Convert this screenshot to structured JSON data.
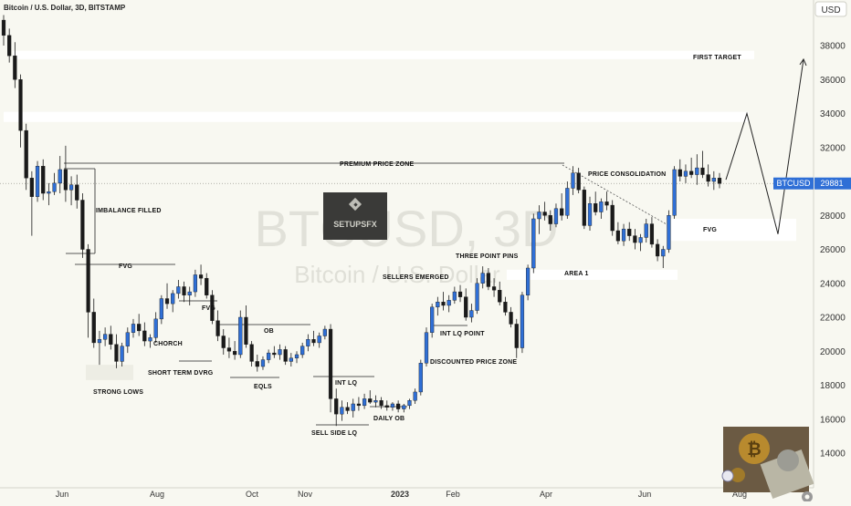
{
  "header": {
    "title": "Bitcoin / U.S. Dollar, 3D, BITSTAMP",
    "currency": "USD"
  },
  "watermark": {
    "symbol": "BTCUSD, 3D",
    "name": "Bitcoin / U.S. Dollar",
    "logo_text": "SETUPSFX"
  },
  "price_label": {
    "symbol": "BTCUSD",
    "value": "29881",
    "price": 29881
  },
  "colors": {
    "up": "#2f6fd6",
    "down": "#1a1a1a",
    "zone": "#ffffff",
    "label_bg": "#2f6fd6",
    "bg": "#f8f8f1"
  },
  "annotations": {
    "first_target": "FIRST TARGET",
    "premium": "PREMIUM PRICE ZONE",
    "price_consolidation": "PRICE CONSOLIDATION",
    "imbalance": "IMBALANCE FILLED",
    "fvg1": "FVG",
    "fvg2": "FVG",
    "fvg3": "FVG",
    "choch": "CHORCH",
    "short_term": "SHORT TERM DVRG",
    "strong_lows": "STRONG LOWS",
    "ob": "OB",
    "eqls": "EQLS",
    "int_lq": "INT LQ",
    "daily_ob": "DAILY OB",
    "sell_side": "SELL SIDE LQ",
    "sellers": "SELLERS EMERGED",
    "three_pins": "THREE POINT PINS",
    "int_lq_point": "INT LQ POINT",
    "discounted": "DISCOUNTED PRICE ZONE",
    "area1": "AREA 1"
  },
  "chart_data": {
    "type": "candlestick",
    "title": "Bitcoin / U.S. Dollar, 3D, BITSTAMP",
    "y_axis": {
      "position": "right",
      "unit": "USD",
      "range": [
        12000,
        40000
      ],
      "ticks": [
        14000,
        16000,
        18000,
        20000,
        22000,
        24000,
        26000,
        28000,
        30000,
        32000,
        34000,
        36000,
        38000
      ]
    },
    "x_axis": {
      "ticks": [
        "Jun",
        "Aug",
        "Oct",
        "Nov",
        "2023",
        "Feb",
        "Apr",
        "Jun",
        "Aug"
      ]
    },
    "zones": [
      {
        "name": "first-target-zone",
        "low": 37200,
        "high": 37700
      },
      {
        "name": "upper-zone",
        "low": 33500,
        "high": 34100
      },
      {
        "name": "fvg-zone",
        "low": 26500,
        "high": 27800
      },
      {
        "name": "area-1-zone",
        "low": 24200,
        "high": 24800
      },
      {
        "name": "strong-lows-zone",
        "low": 18300,
        "high": 19200
      }
    ],
    "levels": [
      {
        "name": "premium-price-zone",
        "price": 30850
      },
      {
        "name": "current-price",
        "price": 29881
      }
    ],
    "projection": [
      30100,
      34000,
      26900,
      37200
    ],
    "candles": [
      [
        39500,
        39800,
        38000,
        38600
      ],
      [
        38600,
        39000,
        37000,
        37400
      ],
      [
        37400,
        38200,
        35500,
        36000
      ],
      [
        36000,
        36300,
        32000,
        33000
      ],
      [
        33000,
        33400,
        29500,
        30200
      ],
      [
        30200,
        30600,
        26800,
        29100
      ],
      [
        29100,
        31200,
        28800,
        30900
      ],
      [
        30900,
        31300,
        28900,
        29300
      ],
      [
        29300,
        29900,
        28600,
        29400
      ],
      [
        29400,
        30500,
        29200,
        29900
      ],
      [
        29900,
        31500,
        29300,
        30700
      ],
      [
        30700,
        32100,
        28800,
        29500
      ],
      [
        29500,
        30300,
        28600,
        29800
      ],
      [
        29800,
        30400,
        28400,
        28900
      ],
      [
        28900,
        29300,
        25500,
        26000
      ],
      [
        26000,
        26300,
        20800,
        22300
      ],
      [
        22300,
        23100,
        20200,
        20500
      ],
      [
        20500,
        21200,
        19200,
        20700
      ],
      [
        20700,
        21400,
        20300,
        21000
      ],
      [
        21000,
        21500,
        20100,
        20400
      ],
      [
        20400,
        21000,
        19000,
        19400
      ],
      [
        19400,
        20500,
        19100,
        20300
      ],
      [
        20300,
        21400,
        19900,
        21100
      ],
      [
        21100,
        21900,
        20800,
        21600
      ],
      [
        21600,
        22200,
        20900,
        21200
      ],
      [
        21200,
        21700,
        20300,
        20600
      ],
      [
        20600,
        21000,
        20200,
        20800
      ],
      [
        20800,
        22300,
        20500,
        21900
      ],
      [
        21900,
        23300,
        21600,
        23100
      ],
      [
        23100,
        24000,
        22500,
        22800
      ],
      [
        22800,
        23600,
        22300,
        23400
      ],
      [
        23400,
        24200,
        23100,
        23800
      ],
      [
        23800,
        24100,
        22900,
        23300
      ],
      [
        23300,
        23800,
        22700,
        23500
      ],
      [
        23500,
        24800,
        23200,
        24500
      ],
      [
        24500,
        25100,
        23900,
        24300
      ],
      [
        24300,
        24600,
        23100,
        23300
      ],
      [
        23300,
        23600,
        21600,
        21800
      ],
      [
        21800,
        22400,
        20600,
        20900
      ],
      [
        20900,
        21300,
        19800,
        20200
      ],
      [
        20200,
        20800,
        19600,
        20000
      ],
      [
        20000,
        20600,
        19500,
        19800
      ],
      [
        19800,
        22400,
        19600,
        22000
      ],
      [
        22000,
        22700,
        20200,
        20400
      ],
      [
        20400,
        20600,
        19100,
        19400
      ],
      [
        19400,
        19800,
        18800,
        19100
      ],
      [
        19100,
        19700,
        18900,
        19500
      ],
      [
        19500,
        20100,
        19300,
        19900
      ],
      [
        19900,
        20300,
        19600,
        19800
      ],
      [
        19800,
        20400,
        19500,
        20100
      ],
      [
        20100,
        20300,
        19200,
        19400
      ],
      [
        19400,
        19900,
        19100,
        19600
      ],
      [
        19600,
        20000,
        19300,
        19800
      ],
      [
        19800,
        20500,
        19600,
        20300
      ],
      [
        20300,
        21000,
        20000,
        20700
      ],
      [
        20700,
        21200,
        20300,
        20500
      ],
      [
        20500,
        21100,
        20200,
        20900
      ],
      [
        20900,
        21500,
        20700,
        21300
      ],
      [
        21300,
        21600,
        16400,
        17200
      ],
      [
        17200,
        17800,
        15600,
        16300
      ],
      [
        16300,
        17100,
        15900,
        16700
      ],
      [
        16700,
        17000,
        16300,
        16500
      ],
      [
        16500,
        17200,
        16100,
        16900
      ],
      [
        16900,
        17300,
        16500,
        16800
      ],
      [
        16800,
        17500,
        16600,
        17200
      ],
      [
        17200,
        17700,
        16900,
        17000
      ],
      [
        17000,
        17400,
        16700,
        17100
      ],
      [
        17100,
        17300,
        16600,
        16800
      ],
      [
        16800,
        17100,
        16500,
        16700
      ],
      [
        16700,
        17000,
        16500,
        16900
      ],
      [
        16900,
        17100,
        16400,
        16600
      ],
      [
        16600,
        16900,
        16400,
        16800
      ],
      [
        16800,
        17200,
        16600,
        17100
      ],
      [
        17100,
        17800,
        16900,
        17600
      ],
      [
        17600,
        19500,
        17400,
        19300
      ],
      [
        19300,
        21400,
        19100,
        21100
      ],
      [
        21100,
        22800,
        20800,
        22600
      ],
      [
        22600,
        23200,
        22100,
        22900
      ],
      [
        22900,
        23500,
        22400,
        22700
      ],
      [
        22700,
        23300,
        22300,
        23000
      ],
      [
        23000,
        23800,
        22800,
        23500
      ],
      [
        23500,
        23900,
        22900,
        23200
      ],
      [
        23200,
        23700,
        21800,
        22000
      ],
      [
        22000,
        22800,
        21700,
        22400
      ],
      [
        22400,
        24300,
        22200,
        24000
      ],
      [
        24000,
        25000,
        23700,
        24600
      ],
      [
        24600,
        24900,
        23600,
        23800
      ],
      [
        23800,
        24300,
        23200,
        23600
      ],
      [
        23600,
        24100,
        22700,
        22900
      ],
      [
        22900,
        23200,
        22100,
        22300
      ],
      [
        22300,
        22600,
        21400,
        21600
      ],
      [
        21600,
        21900,
        19600,
        20200
      ],
      [
        20200,
        23500,
        19900,
        23300
      ],
      [
        23300,
        25100,
        23000,
        24900
      ],
      [
        24900,
        28100,
        24600,
        27800
      ],
      [
        27800,
        28600,
        26900,
        28200
      ],
      [
        28200,
        28800,
        27700,
        28000
      ],
      [
        28000,
        28300,
        27100,
        27500
      ],
      [
        27500,
        28700,
        27300,
        28400
      ],
      [
        28400,
        29300,
        27700,
        28000
      ],
      [
        28000,
        30000,
        27800,
        29600
      ],
      [
        29600,
        30900,
        29200,
        30500
      ],
      [
        30500,
        30800,
        29300,
        29500
      ],
      [
        29500,
        29700,
        27200,
        27400
      ],
      [
        27400,
        29100,
        27100,
        28700
      ],
      [
        28700,
        29400,
        28000,
        28200
      ],
      [
        28200,
        29000,
        27800,
        28800
      ],
      [
        28800,
        29400,
        28300,
        28600
      ],
      [
        28600,
        28900,
        26800,
        27100
      ],
      [
        27100,
        27600,
        26300,
        26500
      ],
      [
        26500,
        27500,
        26200,
        27200
      ],
      [
        27200,
        27600,
        26500,
        26800
      ],
      [
        26800,
        27200,
        26000,
        26400
      ],
      [
        26400,
        26900,
        25900,
        26700
      ],
      [
        26700,
        27800,
        26400,
        27500
      ],
      [
        27500,
        27900,
        26100,
        26300
      ],
      [
        26300,
        26600,
        25300,
        25600
      ],
      [
        25600,
        26200,
        24900,
        26000
      ],
      [
        26000,
        28300,
        25800,
        28000
      ],
      [
        28000,
        30900,
        27800,
        30700
      ],
      [
        30700,
        31300,
        30000,
        30300
      ],
      [
        30300,
        31000,
        29900,
        30600
      ],
      [
        30600,
        31400,
        30200,
        30400
      ],
      [
        30400,
        31600,
        29800,
        30800
      ],
      [
        30800,
        31800,
        30200,
        30400
      ],
      [
        30400,
        31000,
        29700,
        30000
      ],
      [
        30000,
        30600,
        29500,
        30200
      ],
      [
        30200,
        30500,
        29600,
        29881
      ]
    ]
  }
}
